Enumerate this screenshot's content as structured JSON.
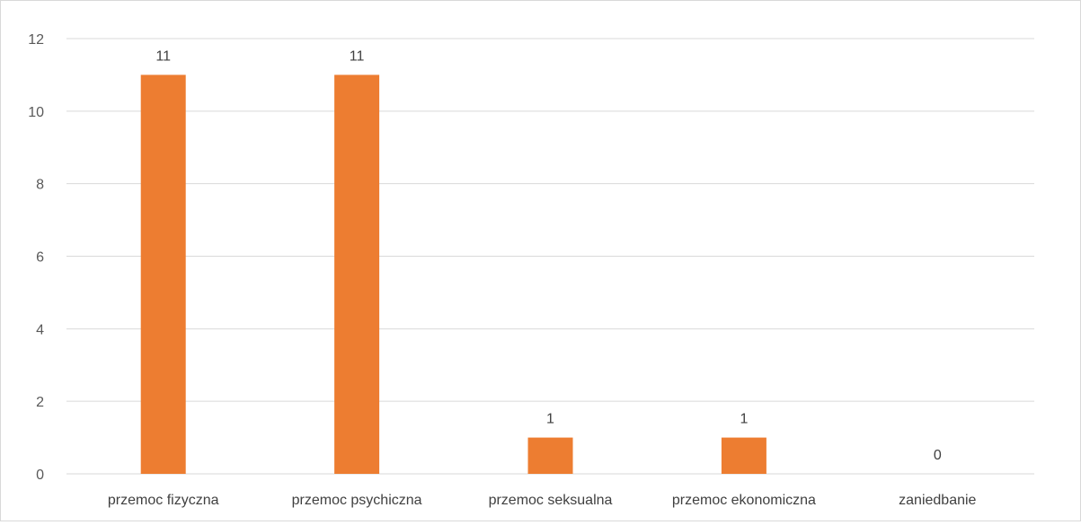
{
  "chart_data": {
    "type": "bar",
    "categories": [
      "przemoc fizyczna",
      "przemoc psychiczna",
      "przemoc seksualna",
      "przemoc ekonomiczna",
      "zaniedbanie"
    ],
    "values": [
      11,
      11,
      1,
      1,
      0
    ],
    "data_labels": [
      "11",
      "11",
      "1",
      "1",
      "0"
    ],
    "title": "",
    "xlabel": "",
    "ylabel": "",
    "ylim": [
      0,
      12
    ],
    "yticks": [
      0,
      2,
      4,
      6,
      8,
      10,
      12
    ],
    "grid": true,
    "legend": "none",
    "bar_color": "#ED7D31",
    "grid_color": "#D9D9D9"
  }
}
